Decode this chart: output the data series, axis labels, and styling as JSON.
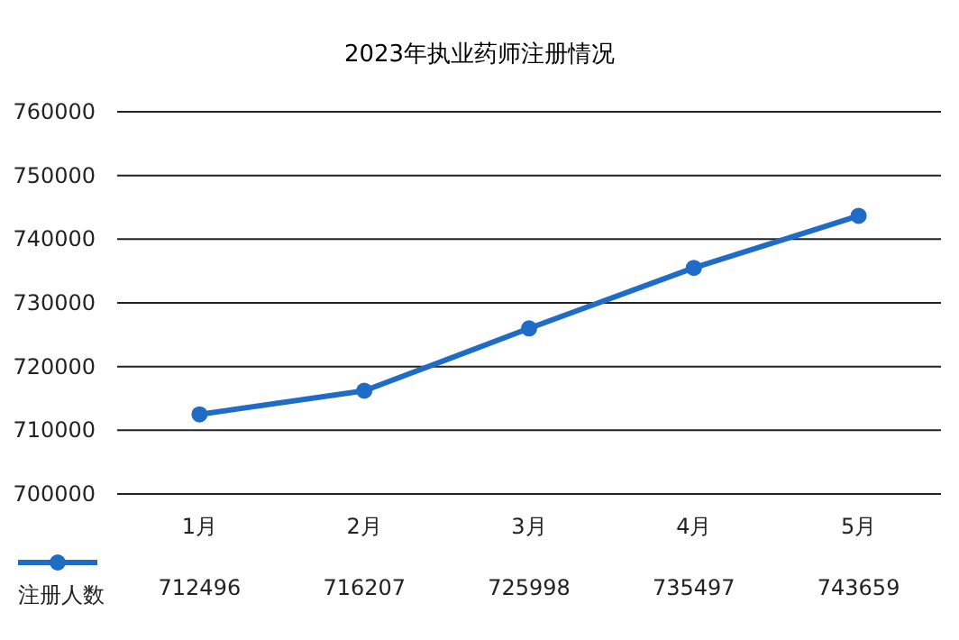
{
  "chart_data": {
    "type": "line",
    "title": "2023年执业药师注册情况",
    "categories": [
      "1月",
      "2月",
      "3月",
      "4月",
      "5月"
    ],
    "series": [
      {
        "name": "注册人数",
        "color": "#1f6bc8",
        "values": [
          712496,
          716207,
          725998,
          735497,
          743659
        ]
      }
    ],
    "ylim": [
      700000,
      760000
    ],
    "yticks": [
      700000,
      710000,
      720000,
      730000,
      740000,
      750000,
      760000
    ],
    "grid": "y",
    "marker": "circle",
    "line_style": "solid",
    "data_labels": true,
    "legend": "bottom left"
  }
}
